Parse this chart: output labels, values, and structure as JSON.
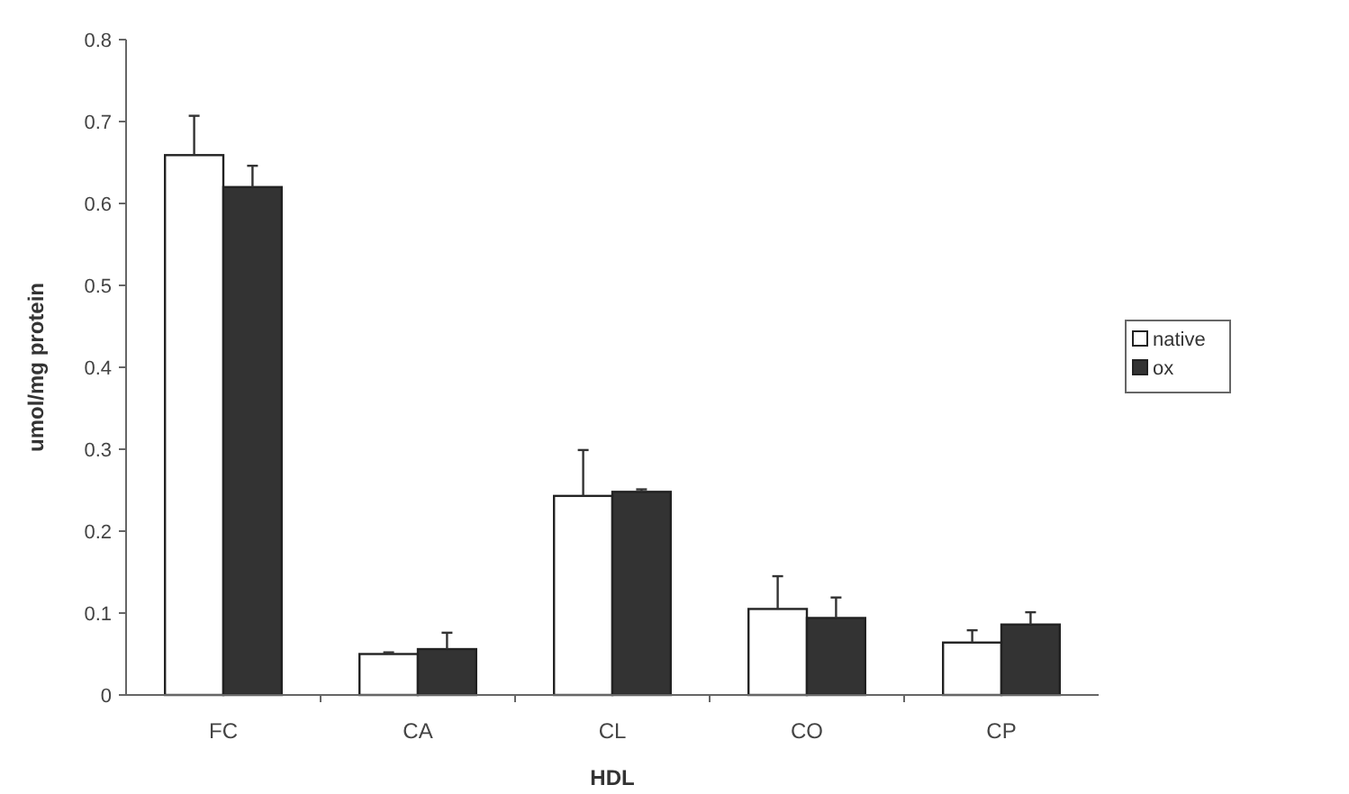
{
  "chart_data": {
    "type": "bar",
    "xlabel": "HDL",
    "ylabel": "umol/mg protein",
    "categories": [
      "FC",
      "CA",
      "CL",
      "CO",
      "CP"
    ],
    "series": [
      {
        "name": "native",
        "color": "#ffffff",
        "values": [
          0.659,
          0.05,
          0.243,
          0.105,
          0.064
        ],
        "errors": [
          0.048,
          0.002,
          0.056,
          0.04,
          0.015
        ]
      },
      {
        "name": "ox",
        "color": "#333333",
        "values": [
          0.62,
          0.056,
          0.248,
          0.094,
          0.086
        ],
        "errors": [
          0.026,
          0.02,
          0.003,
          0.025,
          0.015
        ]
      }
    ],
    "ylim": [
      0,
      0.8
    ],
    "yticks": [
      0,
      0.1,
      0.2,
      0.3,
      0.4,
      0.5,
      0.6,
      0.7,
      0.8
    ],
    "grid": false,
    "legend": "right"
  }
}
